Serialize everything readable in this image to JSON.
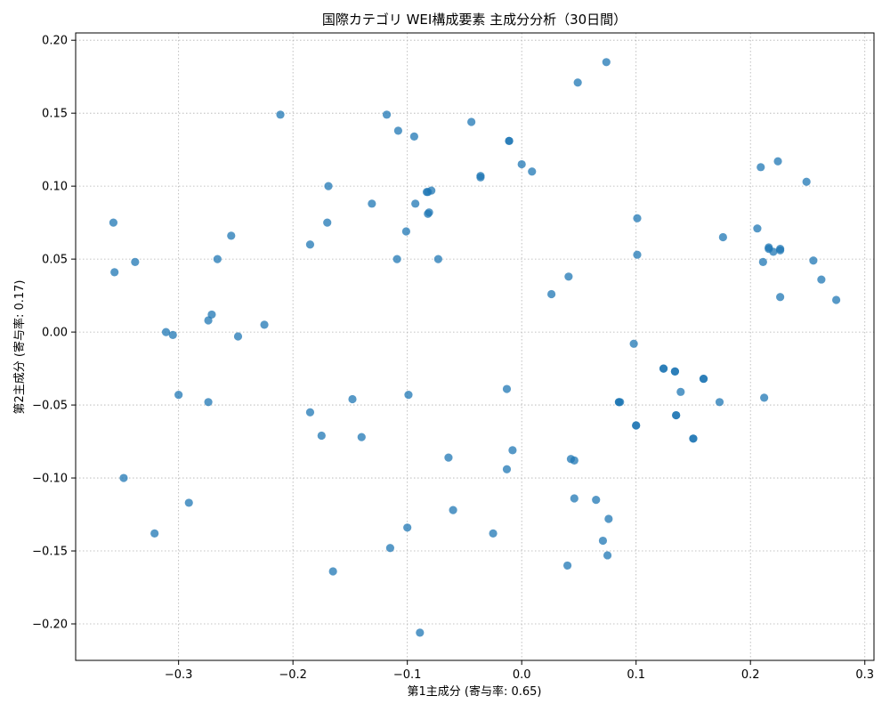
{
  "chart_data": {
    "type": "scatter",
    "title": "国際カテゴリ WEI構成要素 主成分分析（30日間）",
    "xlabel": "第1主成分 (寄与率: 0.65)",
    "ylabel": "第2主成分 (寄与率: 0.17)",
    "xlim": [
      -0.39,
      0.308
    ],
    "ylim": [
      -0.225,
      0.205
    ],
    "xticks": [
      -0.3,
      -0.2,
      -0.1,
      0.0,
      0.1,
      0.2,
      0.3
    ],
    "xtick_labels": [
      "−0.3",
      "−0.2",
      "−0.1",
      "0.0",
      "0.1",
      "0.2",
      "0.3"
    ],
    "yticks": [
      -0.2,
      -0.15,
      -0.1,
      -0.05,
      0.0,
      0.05,
      0.1,
      0.15,
      0.2
    ],
    "ytick_labels": [
      "−0.20",
      "−0.15",
      "−0.10",
      "−0.05",
      "0.00",
      "0.05",
      "0.10",
      "0.15",
      "0.20"
    ],
    "grid": true,
    "color": "#1f77b4",
    "points": [
      {
        "x": -0.357,
        "y": 0.075
      },
      {
        "x": -0.356,
        "y": 0.041
      },
      {
        "x": -0.338,
        "y": 0.048
      },
      {
        "x": -0.348,
        "y": -0.1
      },
      {
        "x": -0.321,
        "y": -0.138
      },
      {
        "x": -0.311,
        "y": 0.0
      },
      {
        "x": -0.305,
        "y": -0.002
      },
      {
        "x": -0.3,
        "y": -0.043
      },
      {
        "x": -0.291,
        "y": -0.117
      },
      {
        "x": -0.274,
        "y": 0.008
      },
      {
        "x": -0.271,
        "y": 0.012
      },
      {
        "x": -0.274,
        "y": -0.048
      },
      {
        "x": -0.266,
        "y": 0.05
      },
      {
        "x": -0.254,
        "y": 0.066
      },
      {
        "x": -0.248,
        "y": -0.003
      },
      {
        "x": -0.225,
        "y": 0.005
      },
      {
        "x": -0.211,
        "y": 0.149
      },
      {
        "x": -0.185,
        "y": 0.06
      },
      {
        "x": -0.185,
        "y": -0.055
      },
      {
        "x": -0.175,
        "y": -0.071
      },
      {
        "x": -0.169,
        "y": 0.1
      },
      {
        "x": -0.17,
        "y": 0.075
      },
      {
        "x": -0.165,
        "y": -0.164
      },
      {
        "x": -0.148,
        "y": -0.046
      },
      {
        "x": -0.14,
        "y": -0.072
      },
      {
        "x": -0.131,
        "y": 0.088
      },
      {
        "x": -0.118,
        "y": 0.149
      },
      {
        "x": -0.115,
        "y": -0.148
      },
      {
        "x": -0.108,
        "y": 0.138
      },
      {
        "x": -0.109,
        "y": 0.05
      },
      {
        "x": -0.101,
        "y": 0.069
      },
      {
        "x": -0.099,
        "y": -0.043
      },
      {
        "x": -0.1,
        "y": -0.134
      },
      {
        "x": -0.094,
        "y": 0.134
      },
      {
        "x": -0.093,
        "y": 0.088
      },
      {
        "x": -0.089,
        "y": -0.206
      },
      {
        "x": -0.083,
        "y": 0.096
      },
      {
        "x": -0.082,
        "y": 0.096
      },
      {
        "x": -0.082,
        "y": 0.081
      },
      {
        "x": -0.081,
        "y": 0.082
      },
      {
        "x": -0.079,
        "y": 0.097
      },
      {
        "x": -0.073,
        "y": 0.05
      },
      {
        "x": -0.064,
        "y": -0.086
      },
      {
        "x": -0.06,
        "y": -0.122
      },
      {
        "x": -0.044,
        "y": 0.144
      },
      {
        "x": -0.036,
        "y": 0.107
      },
      {
        "x": -0.036,
        "y": 0.106
      },
      {
        "x": -0.025,
        "y": -0.138
      },
      {
        "x": -0.013,
        "y": -0.039
      },
      {
        "x": -0.013,
        "y": -0.094
      },
      {
        "x": -0.011,
        "y": 0.131
      },
      {
        "x": -0.011,
        "y": 0.131
      },
      {
        "x": -0.008,
        "y": -0.081
      },
      {
        "x": 0.0,
        "y": 0.115
      },
      {
        "x": 0.009,
        "y": 0.11
      },
      {
        "x": 0.026,
        "y": 0.026
      },
      {
        "x": 0.04,
        "y": -0.16
      },
      {
        "x": 0.041,
        "y": 0.038
      },
      {
        "x": 0.043,
        "y": -0.087
      },
      {
        "x": 0.046,
        "y": -0.088
      },
      {
        "x": 0.046,
        "y": -0.114
      },
      {
        "x": 0.049,
        "y": 0.171
      },
      {
        "x": 0.065,
        "y": -0.115
      },
      {
        "x": 0.071,
        "y": -0.143
      },
      {
        "x": 0.074,
        "y": 0.185
      },
      {
        "x": 0.076,
        "y": -0.128
      },
      {
        "x": 0.075,
        "y": -0.153
      },
      {
        "x": 0.085,
        "y": -0.048
      },
      {
        "x": 0.085,
        "y": -0.048
      },
      {
        "x": 0.086,
        "y": -0.048
      },
      {
        "x": 0.098,
        "y": -0.008
      },
      {
        "x": 0.1,
        "y": -0.064
      },
      {
        "x": 0.1,
        "y": -0.064
      },
      {
        "x": 0.101,
        "y": 0.078
      },
      {
        "x": 0.101,
        "y": 0.053
      },
      {
        "x": 0.124,
        "y": -0.025
      },
      {
        "x": 0.124,
        "y": -0.025
      },
      {
        "x": 0.134,
        "y": -0.027
      },
      {
        "x": 0.134,
        "y": -0.027
      },
      {
        "x": 0.135,
        "y": -0.057
      },
      {
        "x": 0.135,
        "y": -0.057
      },
      {
        "x": 0.139,
        "y": -0.041
      },
      {
        "x": 0.15,
        "y": -0.073
      },
      {
        "x": 0.15,
        "y": -0.073
      },
      {
        "x": 0.159,
        "y": -0.032
      },
      {
        "x": 0.159,
        "y": -0.032
      },
      {
        "x": 0.173,
        "y": -0.048
      },
      {
        "x": 0.176,
        "y": 0.065
      },
      {
        "x": 0.206,
        "y": 0.071
      },
      {
        "x": 0.209,
        "y": 0.113
      },
      {
        "x": 0.211,
        "y": 0.048
      },
      {
        "x": 0.212,
        "y": -0.045
      },
      {
        "x": 0.216,
        "y": 0.058
      },
      {
        "x": 0.216,
        "y": 0.057
      },
      {
        "x": 0.22,
        "y": 0.055
      },
      {
        "x": 0.224,
        "y": 0.117
      },
      {
        "x": 0.226,
        "y": 0.057
      },
      {
        "x": 0.226,
        "y": 0.056
      },
      {
        "x": 0.226,
        "y": 0.024
      },
      {
        "x": 0.249,
        "y": 0.103
      },
      {
        "x": 0.255,
        "y": 0.049
      },
      {
        "x": 0.262,
        "y": 0.036
      },
      {
        "x": 0.275,
        "y": 0.022
      }
    ]
  }
}
